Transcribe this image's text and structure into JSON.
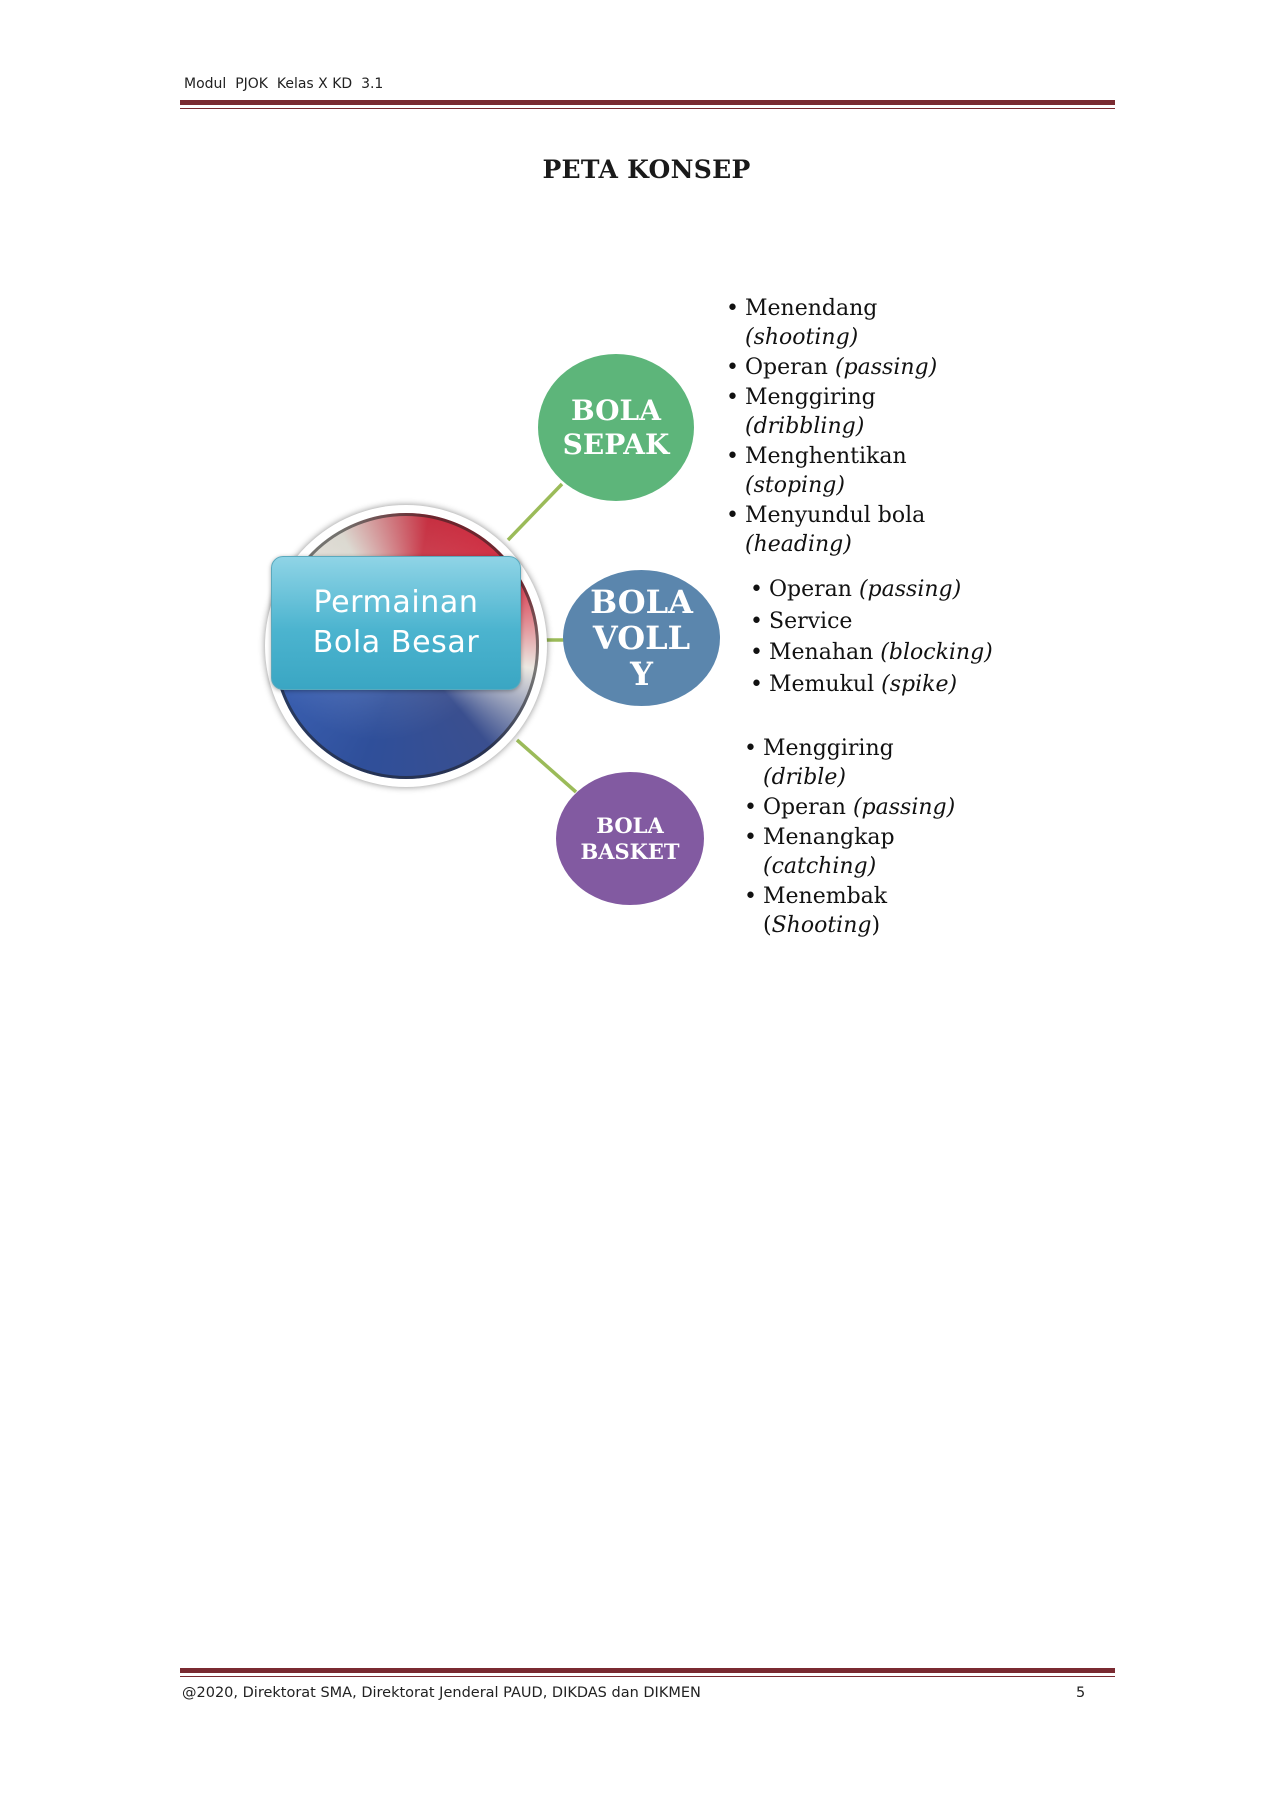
{
  "header": {
    "text": "Modul  PJOK  Kelas X KD  3.1"
  },
  "title": "PETA KONSEP",
  "concept_map": {
    "center": {
      "label": "Permainan\nBola Besar"
    },
    "branches": [
      {
        "label": "BOLA\nSEPAK",
        "color": "#5db57a",
        "items": [
          {
            "text": "Menendang",
            "term": "(shooting)"
          },
          {
            "text": "Operan",
            "term": "(passing)"
          },
          {
            "text": "Menggiring",
            "term": "(dribbling)"
          },
          {
            "text": "Menghentikan",
            "term": "(stoping)"
          },
          {
            "text": "Menyundul bola",
            "term": "(heading)"
          }
        ]
      },
      {
        "label": "BOLA\nVOLL\nY",
        "color": "#5b86ad",
        "items": [
          {
            "text": "Operan",
            "term": "(passing)"
          },
          {
            "text": "Service",
            "term": ""
          },
          {
            "text": "Menahan",
            "term": "(blocking)"
          },
          {
            "text": "Memukul",
            "term": "(spike)"
          }
        ]
      },
      {
        "label": "BOLA\nBASKET",
        "color": "#825aa1",
        "items": [
          {
            "text": "Menggiring",
            "term": "(drible)"
          },
          {
            "text": "Operan",
            "term": "(passing)"
          },
          {
            "text": "Menangkap",
            "term": "(catching)"
          },
          {
            "text": "Menembak",
            "term_open": "(",
            "term": "Shooting",
            "term_close": ")"
          }
        ]
      }
    ],
    "connector_color": "#9bbb59"
  },
  "footer": {
    "text": "@2020, Direktorat SMA, Direktorat Jenderal PAUD, DIKDAS dan DIKMEN",
    "page_number": "5"
  }
}
